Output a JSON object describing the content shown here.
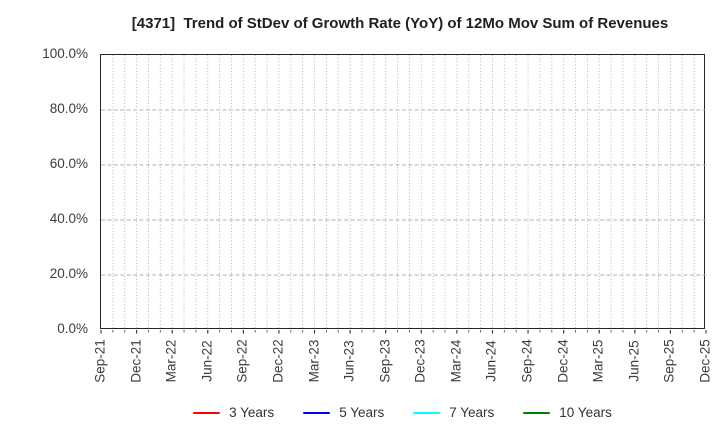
{
  "title": "[4371]  Trend of StDev of Growth Rate (YoY) of 12Mo Mov Sum of Revenues",
  "chart_data": {
    "type": "line",
    "title": "[4371]  Trend of StDev of Growth Rate (YoY) of 12Mo Mov Sum of Revenues",
    "x_tick_labels": [
      "Sep-21",
      "Dec-21",
      "Mar-22",
      "Jun-22",
      "Sep-22",
      "Dec-22",
      "Mar-23",
      "Jun-23",
      "Sep-23",
      "Dec-23",
      "Mar-24",
      "Jun-24",
      "Sep-24",
      "Dec-24",
      "Mar-25",
      "Jun-25",
      "Sep-25",
      "Dec-25"
    ],
    "months_between_ticks": 3,
    "y_tick_labels": [
      "0.0%",
      "20.0%",
      "40.0%",
      "60.0%",
      "80.0%",
      "100.0%"
    ],
    "y_ticks_percent": [
      0,
      20,
      40,
      60,
      80,
      100
    ],
    "ylim": [
      0,
      100
    ],
    "grid": {
      "vertical": "monthly, dotted",
      "horizontal": "every 20%, dashed",
      "color": "#b0b0b0"
    },
    "legend_position": "bottom-center",
    "series": [
      {
        "name": "3 Years",
        "color": "#ff0000",
        "values": []
      },
      {
        "name": "5 Years",
        "color": "#0000ff",
        "values": []
      },
      {
        "name": "7 Years",
        "color": "#00ffff",
        "values": []
      },
      {
        "name": "10 Years",
        "color": "#008000",
        "values": []
      }
    ],
    "note": "plot area contains no visible data lines"
  }
}
